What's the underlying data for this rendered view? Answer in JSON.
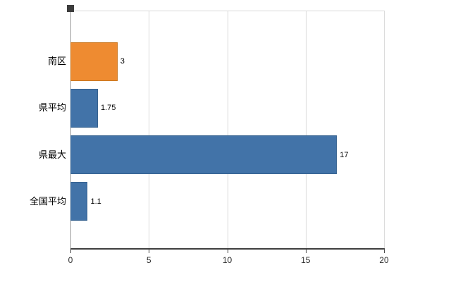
{
  "chart_data": {
    "type": "bar",
    "orientation": "horizontal",
    "title": "",
    "xlabel": "",
    "ylabel": "",
    "categories": [
      "南区",
      "県平均",
      "県最大",
      "全国平均"
    ],
    "values": [
      3,
      1.75,
      17,
      1.1
    ],
    "value_labels": [
      "3",
      "1.75",
      "17",
      "1.1"
    ],
    "bar_colors": [
      "#ee8b31",
      "#4273a8",
      "#4273a8",
      "#4273a8"
    ],
    "bar_border_colors": [
      "#c9761f",
      "#35618f",
      "#35618f",
      "#35618f"
    ],
    "xlim": [
      0,
      20
    ],
    "xticks": [
      0,
      5,
      10,
      15,
      20
    ],
    "xtick_labels": [
      "0",
      "5",
      "10",
      "15",
      "20"
    ],
    "grid": "vertical-gridlines-on",
    "legend": "none"
  }
}
